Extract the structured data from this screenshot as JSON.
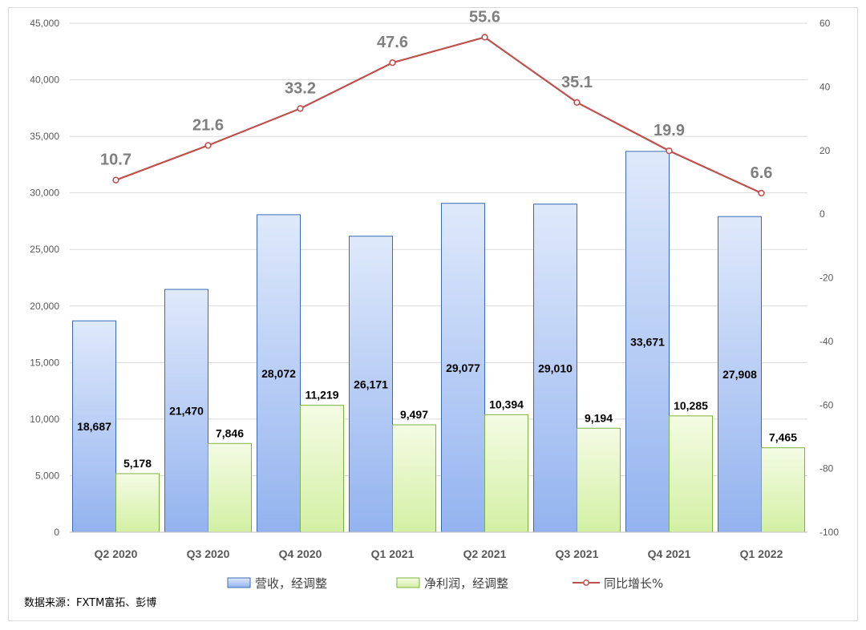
{
  "chart_data": {
    "type": "bar",
    "categories": [
      "Q2 2020",
      "Q3 2020",
      "Q4 2020",
      "Q1 2021",
      "Q2 2021",
      "Q3 2021",
      "Q4 2021",
      "Q1 2022"
    ],
    "series": [
      {
        "name": "营收，经调整",
        "type": "bar",
        "axis": "left",
        "values": [
          18687,
          21470,
          28072,
          26171,
          29077,
          29010,
          33671,
          27908
        ],
        "labels": [
          "18,687",
          "21,470",
          "28,072",
          "26,171",
          "29,077",
          "29,010",
          "33,671",
          "27,908"
        ],
        "colors": {
          "top": "#dfe9fb",
          "bottom": "#93b3ef",
          "stroke": "#3c6bb5"
        }
      },
      {
        "name": "净利润，经调整",
        "type": "bar",
        "axis": "left",
        "values": [
          5178,
          7846,
          11219,
          9497,
          10394,
          9194,
          10285,
          7465
        ],
        "labels": [
          "5,178",
          "7,846",
          "11,219",
          "9,497",
          "10,394",
          "9,194",
          "10,285",
          "7,465"
        ],
        "colors": {
          "top": "#f4fbe4",
          "bottom": "#d3f0a4",
          "stroke": "#7fb241"
        }
      },
      {
        "name": "同比增长%",
        "type": "line",
        "axis": "right",
        "values": [
          10.7,
          21.6,
          33.2,
          47.6,
          55.6,
          35.1,
          19.9,
          6.6
        ],
        "labels": [
          "10.7",
          "21.6",
          "33.2",
          "47.6",
          "55.6",
          "35.1",
          "19.9",
          "6.6"
        ],
        "colors": {
          "line": "#c0504d"
        }
      }
    ],
    "y_left": {
      "ylim": [
        0,
        45000
      ],
      "ticks": [
        0,
        5000,
        10000,
        15000,
        20000,
        25000,
        30000,
        35000,
        40000,
        45000
      ],
      "tick_labels": [
        "0",
        "5,000",
        "10,000",
        "15,000",
        "20,000",
        "25,000",
        "30,000",
        "35,000",
        "40,000",
        "45,000"
      ]
    },
    "y_right": {
      "ylim": [
        -100,
        60
      ],
      "ticks": [
        -100,
        -80,
        -60,
        -40,
        -20,
        0,
        20,
        40,
        60
      ],
      "tick_labels": [
        "-100",
        "-80",
        "-60",
        "-40",
        "-20",
        "0",
        "20",
        "40",
        "60"
      ]
    },
    "grid": true,
    "legend_position": "bottom",
    "source": "数据来源：FXTM富拓、彭博"
  }
}
